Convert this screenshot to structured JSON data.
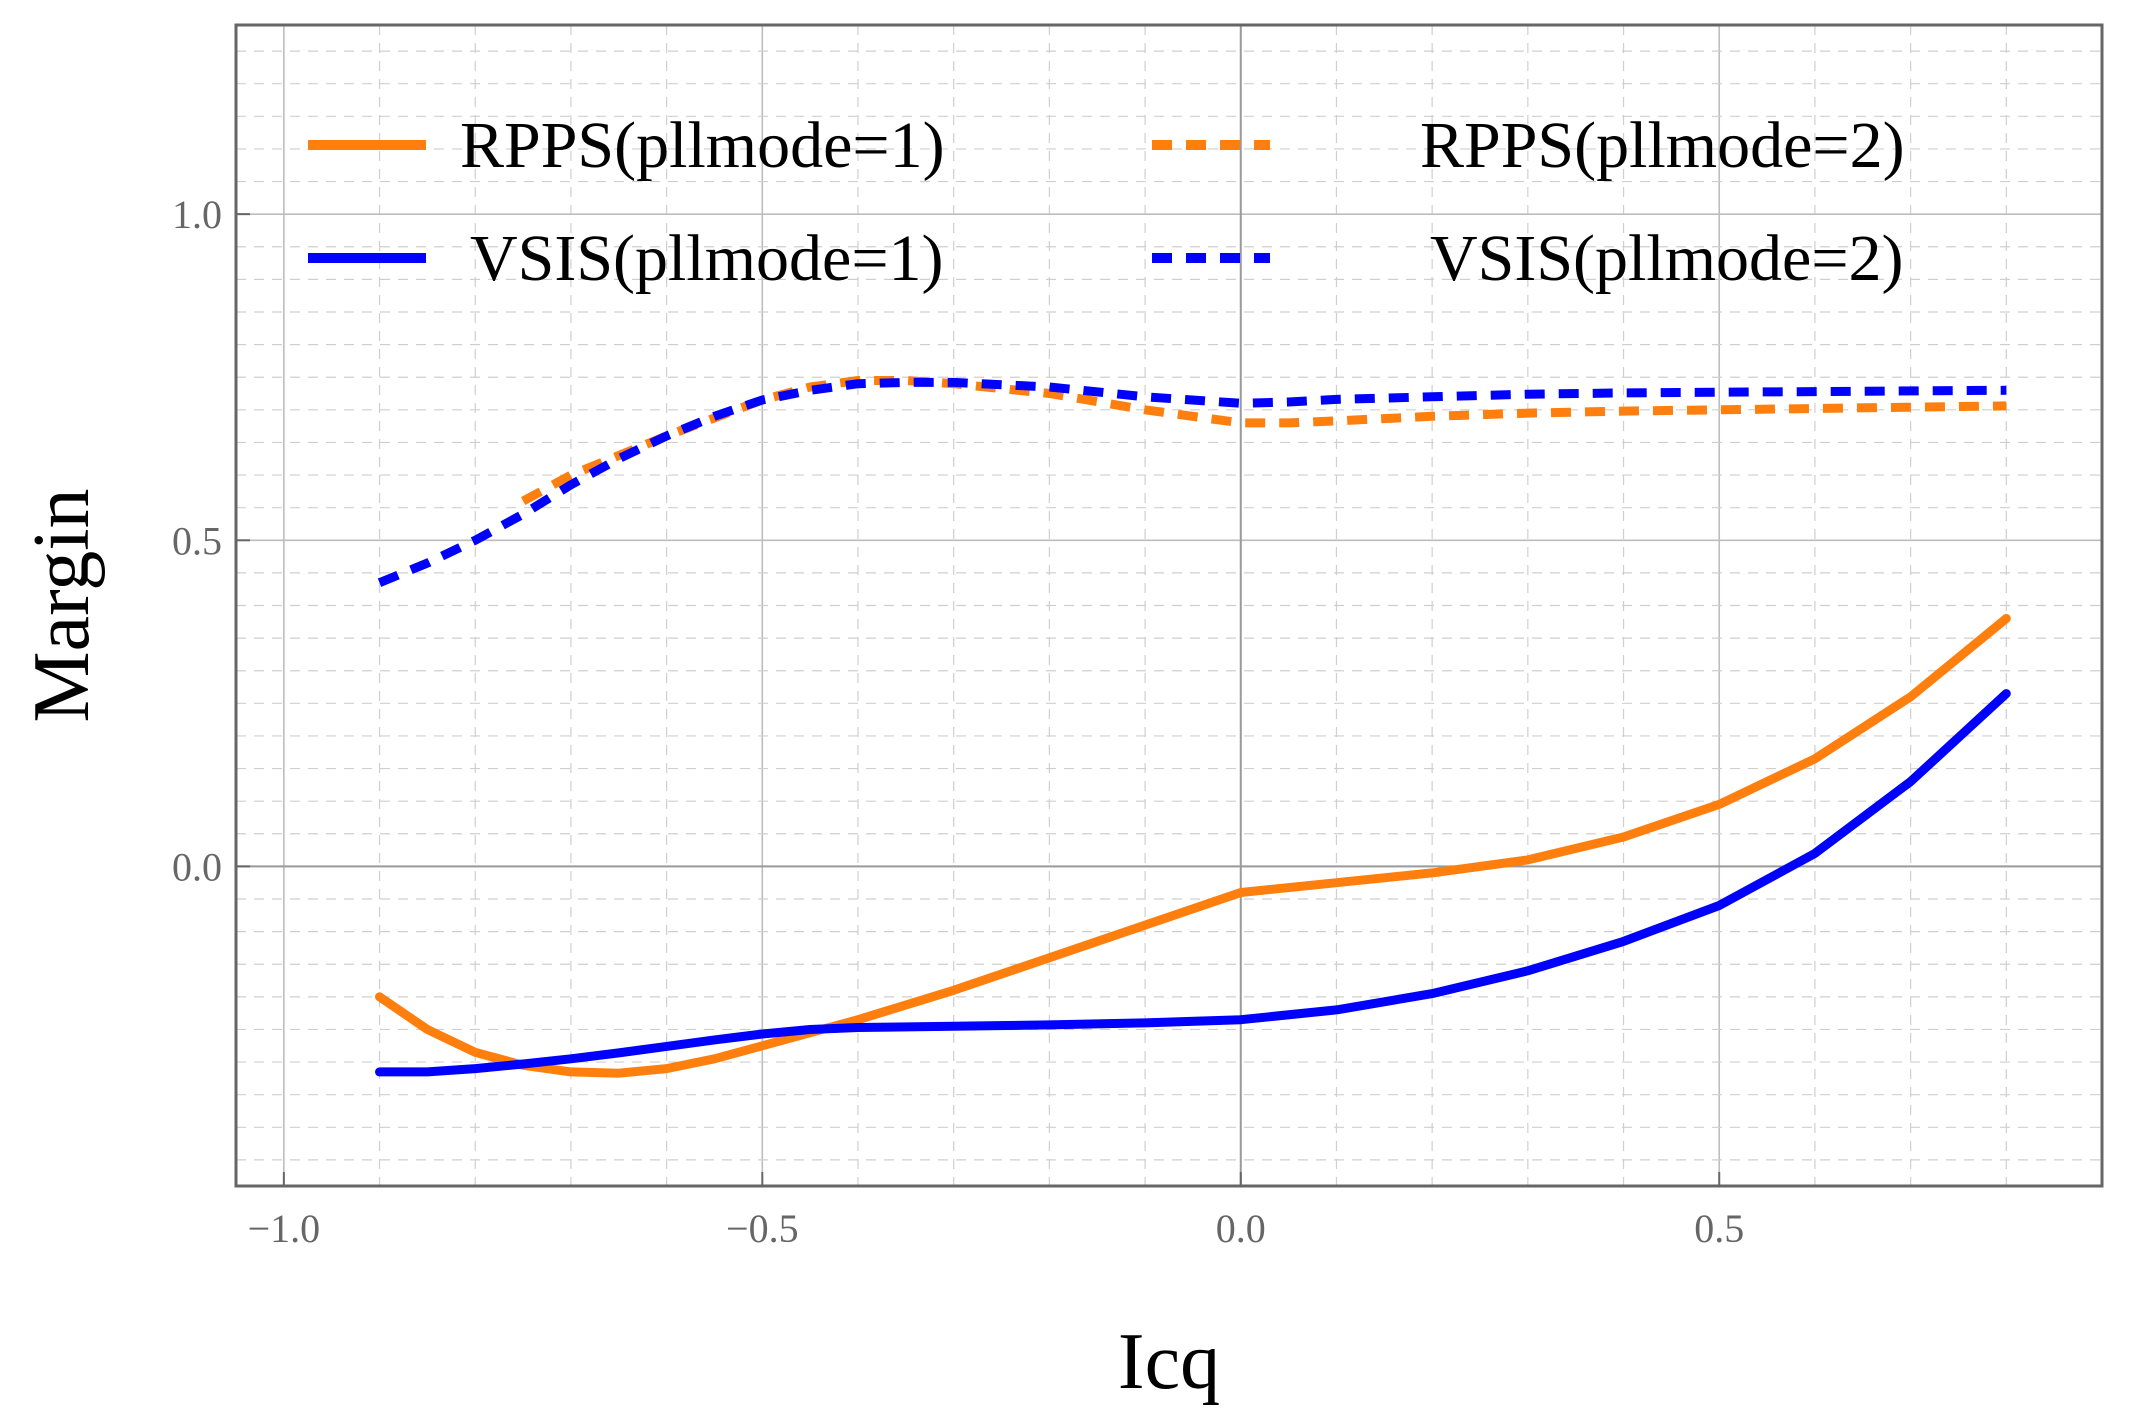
{
  "chart_data": {
    "type": "line",
    "title": "",
    "xlabel": "Icq",
    "ylabel": "Margin",
    "xlim": [
      -1.05,
      0.9
    ],
    "ylim": [
      -0.49,
      1.29
    ],
    "x_ticks": [
      -1.0,
      -0.5,
      0.0,
      0.5
    ],
    "x_tick_labels": [
      "−1.0",
      "−0.5",
      "0.0",
      "0.5"
    ],
    "y_ticks": [
      0.0,
      0.5,
      1.0
    ],
    "y_tick_labels": [
      "0.0",
      "0.5",
      "1.0"
    ],
    "grid": true,
    "legend_position": "top",
    "series": [
      {
        "name": "RPPS(pllmode=1)",
        "color": "#ff7f0e",
        "dash": "solid",
        "x": [
          -0.9,
          -0.85,
          -0.8,
          -0.75,
          -0.7,
          -0.65,
          -0.6,
          -0.55,
          -0.5,
          -0.45,
          -0.4,
          -0.3,
          -0.2,
          -0.1,
          0.0,
          0.1,
          0.2,
          0.3,
          0.4,
          0.5,
          0.6,
          0.7,
          0.8
        ],
        "y": [
          -0.2,
          -0.25,
          -0.285,
          -0.305,
          -0.315,
          -0.317,
          -0.31,
          -0.295,
          -0.275,
          -0.255,
          -0.235,
          -0.19,
          -0.14,
          -0.09,
          -0.04,
          -0.025,
          -0.01,
          0.01,
          0.045,
          0.095,
          0.165,
          0.26,
          0.38
        ]
      },
      {
        "name": "RPPS(pllmode=2)",
        "color": "#ff7f0e",
        "dash": "dashed",
        "x": [
          -0.75,
          -0.7,
          -0.6,
          -0.5,
          -0.45,
          -0.4,
          -0.35,
          -0.3,
          -0.2,
          -0.1,
          0.0,
          0.05,
          0.1,
          0.2,
          0.3,
          0.4,
          0.5,
          0.6,
          0.7,
          0.8
        ],
        "y": [
          0.56,
          0.6,
          0.66,
          0.715,
          0.735,
          0.745,
          0.745,
          0.74,
          0.725,
          0.7,
          0.68,
          0.68,
          0.683,
          0.69,
          0.695,
          0.698,
          0.7,
          0.702,
          0.704,
          0.706
        ]
      },
      {
        "name": "VSIS(pllmode=1)",
        "color": "#0000ff",
        "dash": "solid",
        "x": [
          -0.9,
          -0.85,
          -0.8,
          -0.75,
          -0.7,
          -0.65,
          -0.6,
          -0.55,
          -0.5,
          -0.45,
          -0.4,
          -0.3,
          -0.2,
          -0.1,
          0.0,
          0.1,
          0.2,
          0.3,
          0.4,
          0.5,
          0.6,
          0.7,
          0.8
        ],
        "y": [
          -0.315,
          -0.315,
          -0.31,
          -0.303,
          -0.295,
          -0.286,
          -0.276,
          -0.266,
          -0.257,
          -0.25,
          -0.247,
          -0.245,
          -0.243,
          -0.24,
          -0.235,
          -0.22,
          -0.195,
          -0.16,
          -0.115,
          -0.06,
          0.02,
          0.13,
          0.265
        ]
      },
      {
        "name": "VSIS(pllmode=2)",
        "color": "#0000ff",
        "dash": "dashed",
        "x": [
          -0.9,
          -0.85,
          -0.8,
          -0.75,
          -0.7,
          -0.65,
          -0.6,
          -0.55,
          -0.5,
          -0.45,
          -0.4,
          -0.35,
          -0.3,
          -0.2,
          -0.1,
          0.0,
          0.05,
          0.1,
          0.2,
          0.3,
          0.4,
          0.5,
          0.6,
          0.7,
          0.8
        ],
        "y": [
          0.435,
          0.465,
          0.5,
          0.54,
          0.585,
          0.625,
          0.66,
          0.69,
          0.715,
          0.73,
          0.74,
          0.742,
          0.742,
          0.735,
          0.72,
          0.71,
          0.712,
          0.716,
          0.72,
          0.724,
          0.726,
          0.727,
          0.728,
          0.729,
          0.73
        ]
      }
    ]
  }
}
